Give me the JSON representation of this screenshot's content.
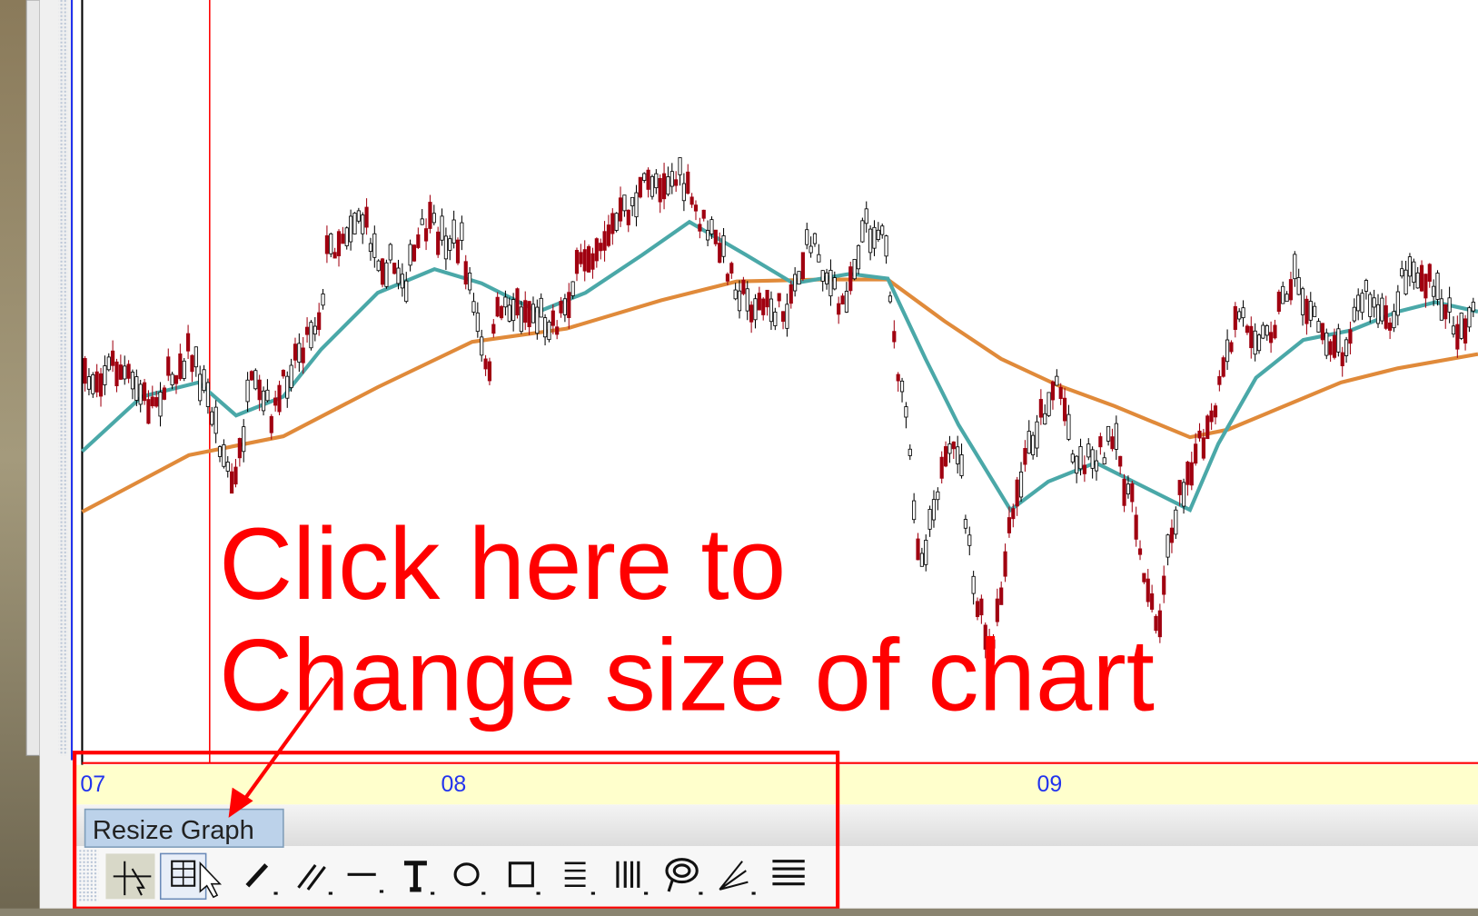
{
  "time_axis": {
    "labels": [
      "07",
      "08",
      "09"
    ]
  },
  "tooltip": "Resize Graph",
  "annotation": {
    "lines": [
      "Click here to",
      "Change size of chart"
    ]
  }
}
